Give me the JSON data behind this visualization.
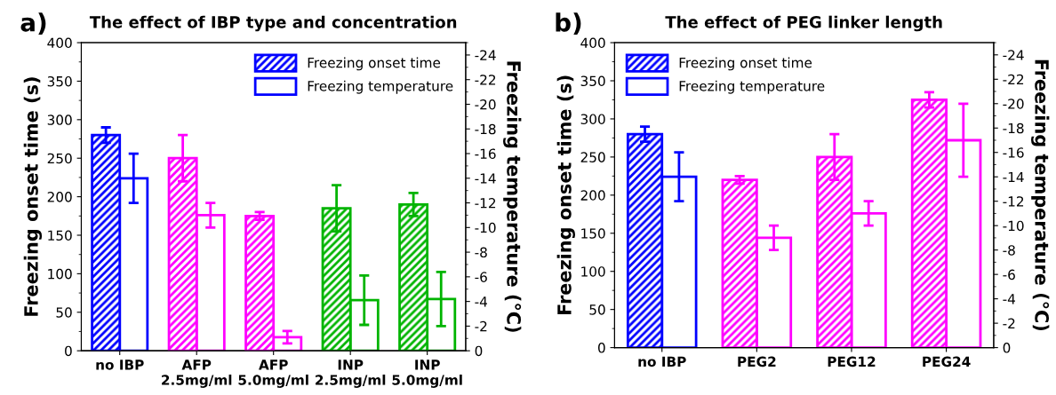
{
  "chart_data": [
    {
      "type": "bar",
      "title": "The effect of IBP type and concentration",
      "ylabel": "Freezing onset time (s)",
      "y2label": "Freezing temperature (°C)",
      "annotations": [
        "a)"
      ],
      "categories": [
        "no IBP",
        "AFP\n2.5mg/ml",
        "AFP\n5.0mg/ml",
        "INP\n2.5mg/ml",
        "INP\n5.0mg/ml"
      ],
      "series": [
        {
          "name": "Freezing onset time",
          "color": "#0000ff",
          "colors": [
            "#0000ff",
            "#ff00ff",
            "#ff00ff",
            "#00b400",
            "#00b400"
          ],
          "values": [
            280,
            250,
            175,
            185,
            190
          ],
          "errors": [
            10,
            30,
            5,
            30,
            15
          ]
        },
        {
          "name": "Freezing temperature",
          "axis": "y2",
          "color": "#0000ff",
          "colors": [
            "#0000ff",
            "#ff00ff",
            "#ff00ff",
            "#00b400",
            "#00b400"
          ],
          "values": [
            -14,
            -11,
            -1.1,
            -4.1,
            -4.2
          ],
          "errors": [
            2,
            1,
            0.5,
            2,
            2.2
          ]
        }
      ],
      "ylim": [
        0,
        400
      ],
      "yticks": [
        0,
        50,
        100,
        150,
        200,
        250,
        300,
        350,
        400
      ],
      "y2lim": [
        0,
        -25
      ],
      "y2ticks": [
        0,
        -2,
        -4,
        -6,
        -8,
        -10,
        -12,
        -14,
        -16,
        -18,
        -20,
        -22,
        -24
      ],
      "legend": "top right",
      "grid": false
    },
    {
      "type": "bar",
      "title": "The effect of PEG linker length",
      "ylabel": "Freezing onset time (s)",
      "y2label": "Freezing temperature (°C)",
      "annotations": [
        "b)"
      ],
      "categories": [
        "no IBP",
        "PEG2",
        "PEG12",
        "PEG24"
      ],
      "series": [
        {
          "name": "Freezing onset time",
          "color": "#0000ff",
          "colors": [
            "#0000ff",
            "#ff00ff",
            "#ff00ff",
            "#ff00ff"
          ],
          "values": [
            280,
            220,
            250,
            325
          ],
          "errors": [
            10,
            5,
            30,
            10
          ]
        },
        {
          "name": "Freezing temperature",
          "axis": "y2",
          "color": "#0000ff",
          "colors": [
            "#0000ff",
            "#ff00ff",
            "#ff00ff",
            "#ff00ff"
          ],
          "values": [
            -14,
            -9,
            -11,
            -17
          ],
          "errors": [
            2,
            1,
            1,
            3
          ]
        }
      ],
      "ylim": [
        0,
        400
      ],
      "yticks": [
        0,
        50,
        100,
        150,
        200,
        250,
        300,
        350,
        400
      ],
      "y2lim": [
        0,
        -25
      ],
      "y2ticks": [
        0,
        -2,
        -4,
        -6,
        -8,
        -10,
        -12,
        -14,
        -16,
        -18,
        -20,
        -22,
        -24
      ],
      "legend": "top left",
      "grid": false
    }
  ]
}
